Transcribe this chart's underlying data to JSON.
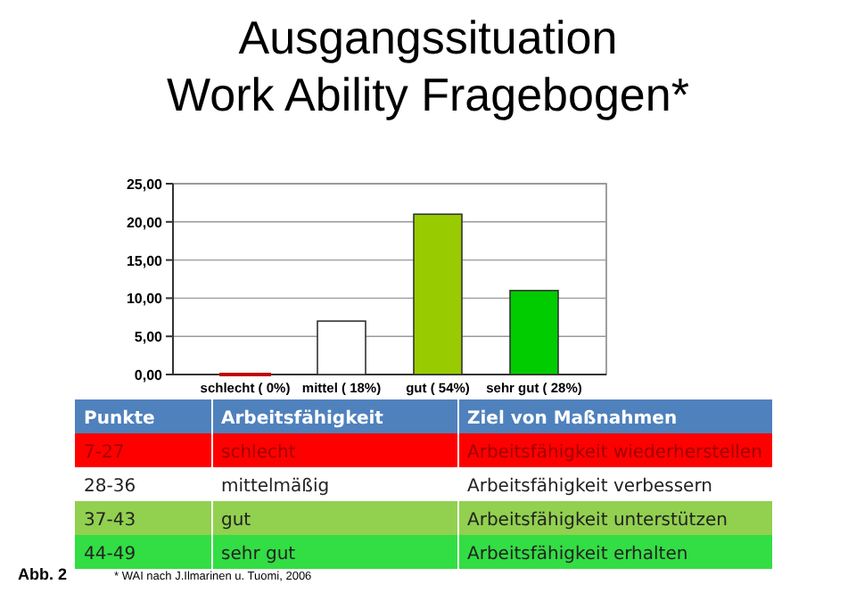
{
  "chart_data": [
    {
      "type": "bar",
      "title": "Ausgangssituation\nWork Ability Fragebogen*",
      "categories": [
        "schlecht ( 0%)",
        "mittel ( 18%)",
        "gut ( 54%)",
        "sehr gut ( 28%)"
      ],
      "values": [
        0,
        7,
        21,
        11
      ],
      "colors": [
        "#c00000",
        "#ffffff",
        "#99cc00",
        "#00cc00"
      ],
      "ylim": [
        0,
        25
      ],
      "yticks": [
        {
          "value": 0,
          "label": "0,00"
        },
        {
          "value": 5,
          "label": "5,00"
        },
        {
          "value": 10,
          "label": "10,00"
        },
        {
          "value": 15,
          "label": "15,00"
        },
        {
          "value": 20,
          "label": "20,00"
        },
        {
          "value": 25,
          "label": "25,00"
        }
      ],
      "grid": "y",
      "annotations": [
        "Abb. 2",
        "* WAI nach J.Ilmarinen u. Tuomi, 2006"
      ]
    },
    {
      "type": "other",
      "categories": [
        "Punkte",
        "Arbeitsfähigkeit",
        "Ziel von Maßnahmen"
      ],
      "annotations": [
        "7-27",
        "schlecht",
        "Arbeitsfähigkeit wiederherstellen",
        "28-36",
        "mittelmäßig",
        "Arbeitsfähigkeit verbessern",
        "37-43",
        "gut",
        "Arbeitsfähigkeit unterstützen",
        "44-49",
        "sehr gut",
        "Arbeitsfähigkeit erhalten"
      ],
      "colors": [
        "#4f81bd",
        "#ff0000",
        "#ffffff",
        "#92d050",
        "#33dd44"
      ]
    }
  ]
}
